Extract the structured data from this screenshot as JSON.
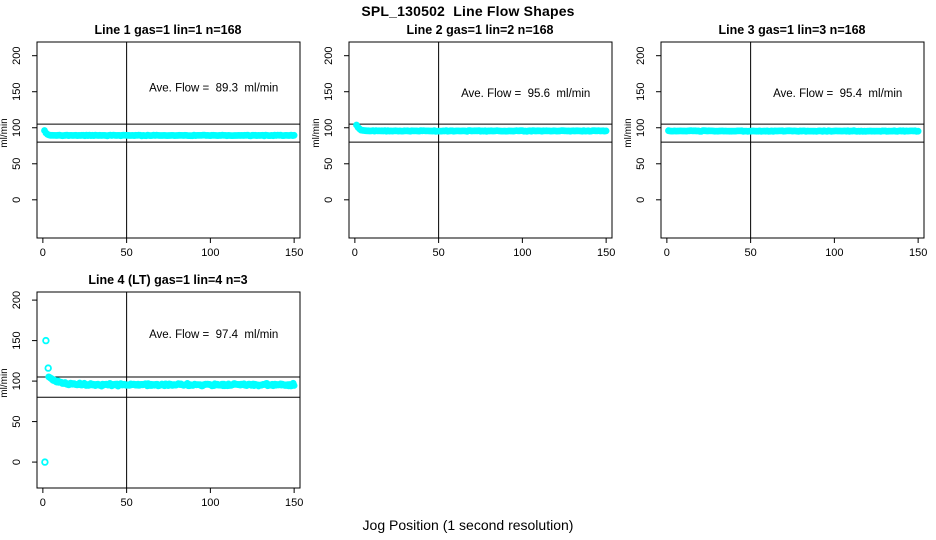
{
  "page": {
    "main_title": "SPL_130502  Line Flow Shapes",
    "x_axis_caption": "Jog Position (1 second resolution)"
  },
  "colors": {
    "points": "#00FFFF",
    "axis": "#000000",
    "background": "#FFFFFF",
    "text": "#000000"
  },
  "chart_data": [
    {
      "type": "scatter",
      "title": "Line 1 gas=1 lin=1 n=168",
      "annotation": "Ave. Flow =  89.3  ml/min",
      "ave_flow_ml_min": 89.3,
      "n_points": 168,
      "ylabel": "ml/min",
      "xticks": [
        0,
        50,
        100,
        150
      ],
      "yticks": [
        0,
        50,
        100,
        150,
        200
      ],
      "xlim": [
        -3.5,
        153.5
      ],
      "ylim": [
        -53,
        219
      ],
      "ref_vline_x": 50,
      "ref_hlines_y": [
        105,
        80
      ],
      "annotation_pos": {
        "x": 102,
        "y": 150
      },
      "band": {
        "x_start": 1,
        "x_end": 150,
        "n": 168,
        "y_start": 96.5,
        "y_settle": 89.3,
        "tau": 1.2,
        "jitter": 0.55
      },
      "extra_points": []
    },
    {
      "type": "scatter",
      "title": "Line 2 gas=1 lin=2 n=168",
      "annotation": "Ave. Flow =  95.6  ml/min",
      "ave_flow_ml_min": 95.6,
      "n_points": 168,
      "ylabel": "ml/min",
      "xticks": [
        0,
        50,
        100,
        150
      ],
      "yticks": [
        0,
        50,
        100,
        150,
        200
      ],
      "xlim": [
        -3.5,
        153.5
      ],
      "ylim": [
        -53,
        219
      ],
      "ref_vline_x": 50,
      "ref_hlines_y": [
        105,
        80
      ],
      "annotation_pos": {
        "x": 102,
        "y": 143
      },
      "band": {
        "x_start": 1,
        "x_end": 150,
        "n": 168,
        "y_start": 104,
        "y_settle": 95.6,
        "tau": 1.6,
        "jitter": 0.55
      },
      "extra_points": []
    },
    {
      "type": "scatter",
      "title": "Line 3 gas=1 lin=3 n=168",
      "annotation": "Ave. Flow =  95.4  ml/min",
      "ave_flow_ml_min": 95.4,
      "n_points": 168,
      "ylabel": "ml/min",
      "xticks": [
        0,
        50,
        100,
        150
      ],
      "yticks": [
        0,
        50,
        100,
        150,
        200
      ],
      "xlim": [
        -3.5,
        153.5
      ],
      "ylim": [
        -53,
        219
      ],
      "ref_vline_x": 50,
      "ref_hlines_y": [
        105,
        80
      ],
      "annotation_pos": {
        "x": 102,
        "y": 143
      },
      "band": {
        "x_start": 1,
        "x_end": 150,
        "n": 168,
        "y_start": 96,
        "y_settle": 95.4,
        "tau": 1.0,
        "jitter": 0.55
      },
      "extra_points": []
    },
    {
      "type": "scatter",
      "title": "Line 4 (LT) gas=1 lin=4 n=3",
      "annotation": "Ave. Flow =  97.4  ml/min",
      "ave_flow_ml_min": 97.4,
      "n_points": 3,
      "ylabel": "ml/min",
      "xticks": [
        0,
        50,
        100,
        150
      ],
      "yticks": [
        0,
        50,
        100,
        150,
        200
      ],
      "xlim": [
        -3.5,
        153.5
      ],
      "ylim": [
        -32,
        210
      ],
      "ref_vline_x": 50,
      "ref_hlines_y": [
        105,
        80
      ],
      "annotation_pos": {
        "x": 102,
        "y": 153
      },
      "band": {
        "x_start": 3.5,
        "x_end": 150,
        "n": 270,
        "y_start": 105,
        "y_settle": 95.5,
        "tau": 6,
        "jitter": 1.9
      },
      "extra_points": [
        [
          1.8,
          150
        ],
        [
          3.2,
          116
        ],
        [
          1.2,
          0
        ]
      ]
    }
  ]
}
